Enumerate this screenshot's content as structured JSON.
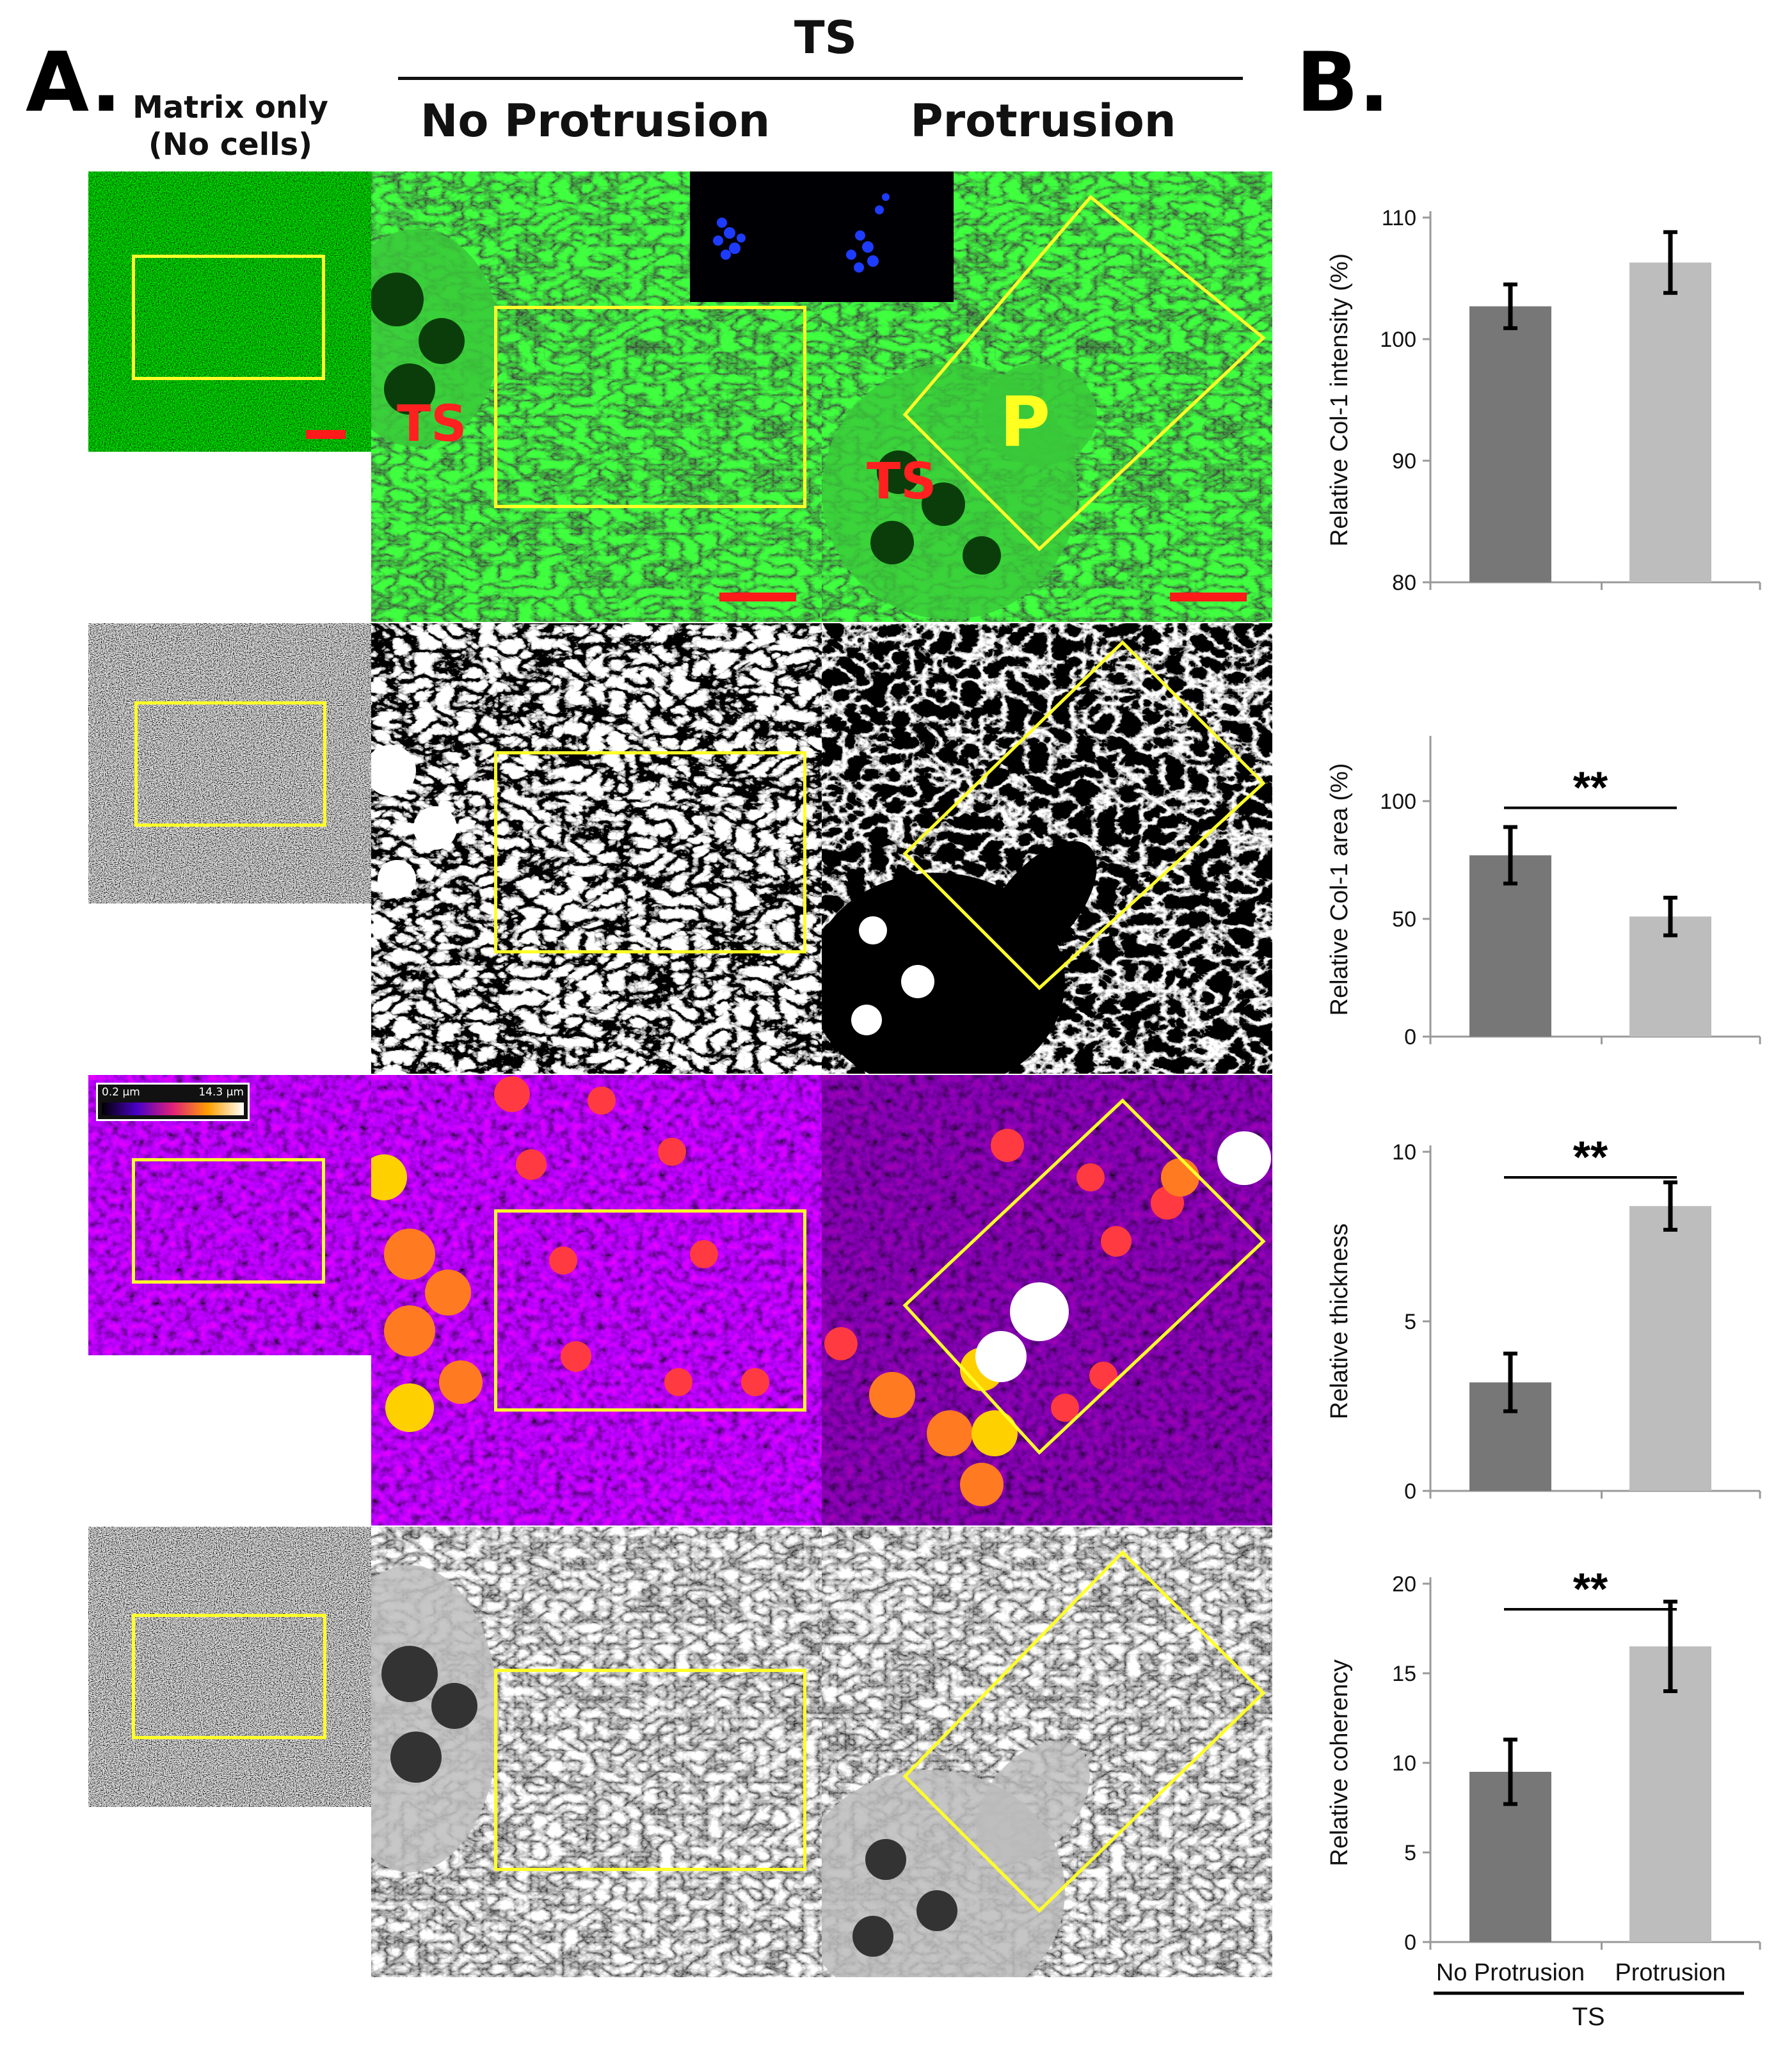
{
  "panel_a_letter": "A.",
  "panel_b_letter": "B.",
  "headers": {
    "matrix_only_line1": "Matrix only",
    "matrix_only_line2": "(No cells)",
    "ts": "TS",
    "no_protrusion": "No Protrusion",
    "protrusion": "Protrusion"
  },
  "image_labels": {
    "ts_1": "TS",
    "ts_2": "TS",
    "p": "P"
  },
  "colorbar": {
    "min": "0.2 µm",
    "max": "14.3 µm"
  },
  "colors": {
    "bar_dark": "#777777",
    "bar_light": "#bdbdbd",
    "box": "#ffff2a",
    "scalebar": "#ff1a1a",
    "label_red": "#ff2020",
    "label_yellow": "#ffff20"
  },
  "chart_data": [
    {
      "type": "bar",
      "categories": [
        "No Protrusion",
        "Protrusion"
      ],
      "values": [
        102.7,
        106.3
      ],
      "errors": [
        1.8,
        2.5
      ],
      "ylabel": "Relative Col-1 intensity (%)",
      "ylim": [
        80,
        110
      ],
      "yticks": [
        80,
        90,
        100,
        110
      ],
      "significance": ""
    },
    {
      "type": "bar",
      "categories": [
        "No Protrusion",
        "Protrusion"
      ],
      "values": [
        77,
        51
      ],
      "errors": [
        12,
        8
      ],
      "ylabel": "Relative Col-1 area (%)",
      "ylim": [
        0,
        125
      ],
      "yticks": [
        0,
        50,
        100
      ],
      "significance": "**"
    },
    {
      "type": "bar",
      "categories": [
        "No Protrusion",
        "Protrusion"
      ],
      "values": [
        3.2,
        8.4
      ],
      "errors": [
        0.85,
        0.7
      ],
      "ylabel": "Relative thickness",
      "ylim": [
        0,
        10
      ],
      "yticks": [
        0,
        5,
        10
      ],
      "significance": "**"
    },
    {
      "type": "bar",
      "categories": [
        "No Protrusion",
        "Protrusion"
      ],
      "values": [
        9.5,
        16.5
      ],
      "errors": [
        1.8,
        2.5
      ],
      "ylabel": "Relative coherency",
      "ylim": [
        0,
        20
      ],
      "yticks": [
        0,
        5,
        10,
        15,
        20
      ],
      "significance": "**"
    }
  ],
  "x_axis": {
    "categories": [
      "No Protrusion",
      "Protrusion"
    ],
    "group_label": "TS"
  }
}
